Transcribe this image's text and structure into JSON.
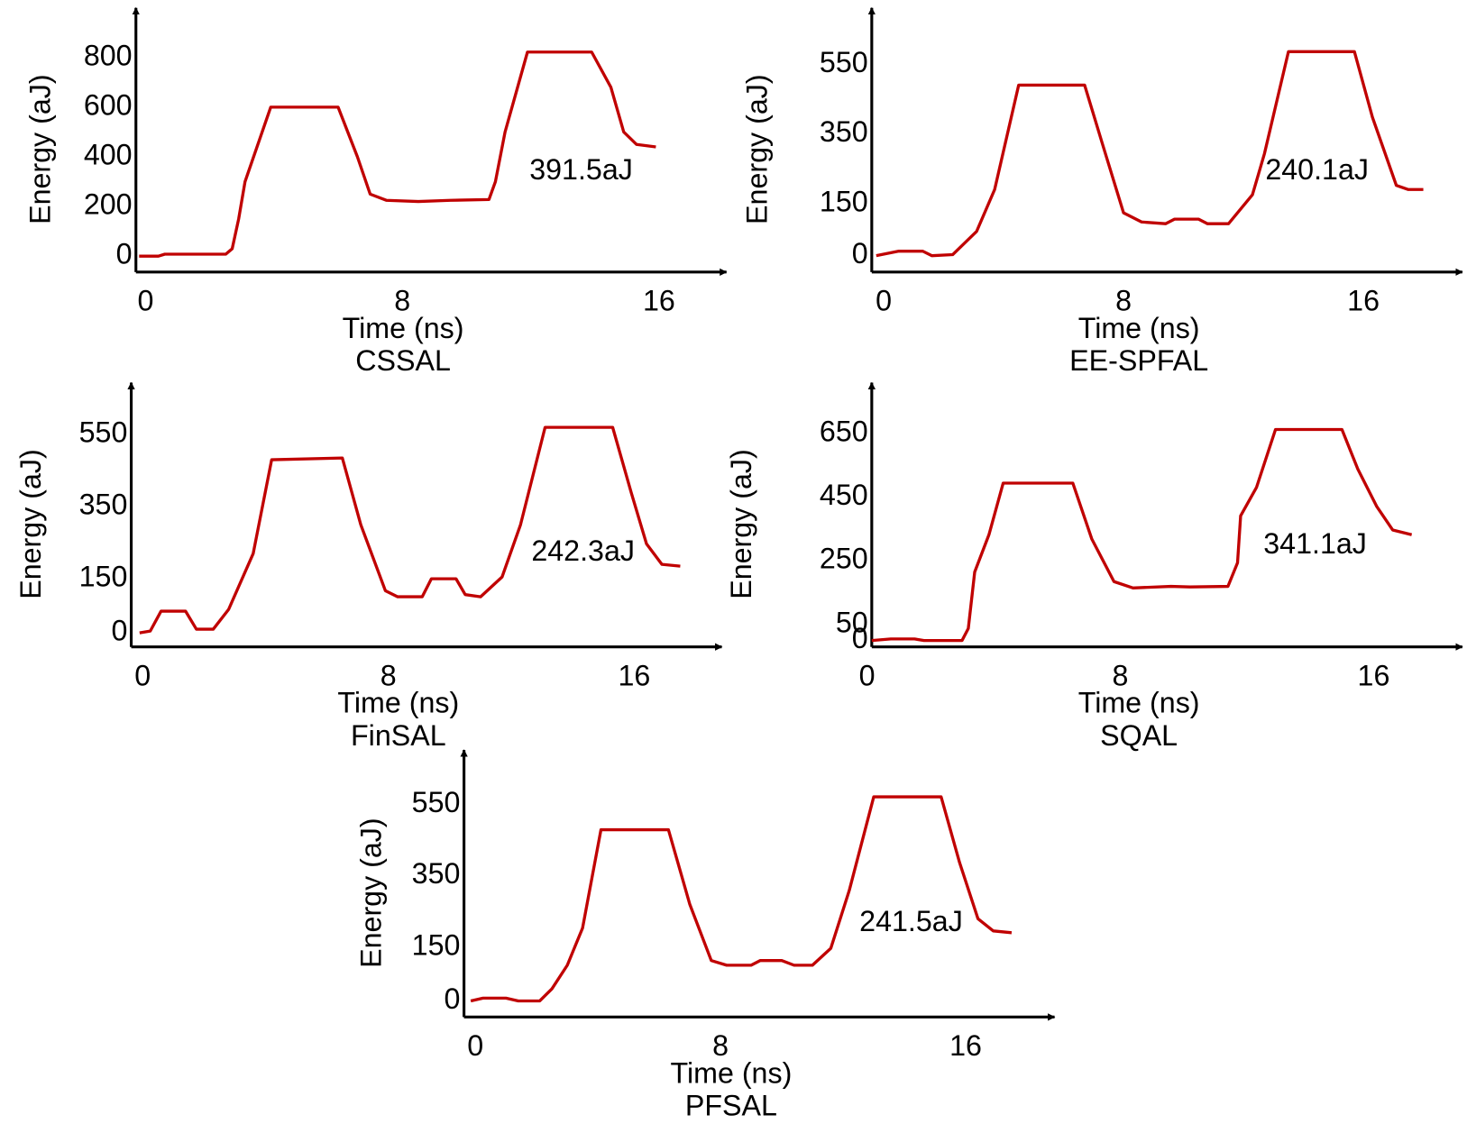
{
  "chart_data": [
    {
      "type": "line",
      "title": "CSSAL",
      "x_label": "Time (ns)",
      "y_label": "Energy (aJ)",
      "annotation": "391.5aJ",
      "color": "#c00000",
      "x": [
        -0.2,
        0.4,
        0.6,
        2.5,
        2.7,
        2.9,
        3.1,
        3.9,
        6.0,
        6.6,
        7.0,
        7.5,
        8.5,
        9.5,
        10.7,
        10.9,
        11.2,
        11.9,
        13.9,
        14.5,
        14.9,
        15.3,
        15.9
      ],
      "values": [
        0,
        0,
        8,
        8,
        30,
        150,
        300,
        600,
        600,
        400,
        250,
        225,
        220,
        225,
        228,
        300,
        500,
        822,
        822,
        680,
        500,
        450,
        440
      ],
      "xlim": [
        -0.3,
        18.1
      ],
      "ylim": [
        -64,
        1000
      ],
      "xticks": [
        0,
        8,
        16
      ],
      "yticks": [
        0,
        200,
        400,
        600,
        800
      ]
    },
    {
      "type": "line",
      "title": "EE-SPFAL",
      "x_label": "Time (ns)",
      "y_label": "Energy (aJ)",
      "annotation": "240.1aJ",
      "color": "#c00000",
      "x": [
        -0.25,
        0.5,
        1.3,
        1.6,
        2.3,
        3.1,
        3.7,
        4.5,
        6.7,
        7.3,
        8.0,
        8.6,
        9.4,
        9.7,
        10.5,
        10.8,
        11.5,
        12.3,
        12.7,
        13.5,
        15.7,
        16.3,
        17.1,
        17.5,
        18.0
      ],
      "values": [
        0,
        13,
        13,
        0,
        3,
        70,
        190,
        490,
        490,
        320,
        123,
        97,
        92,
        105,
        105,
        92,
        92,
        175,
        293,
        586,
        586,
        398,
        202,
        190,
        190
      ],
      "xlim": [
        -0.4,
        19.3
      ],
      "ylim": [
        -47,
        712
      ],
      "xticks": [
        0,
        8,
        16
      ],
      "yticks": [
        0,
        150,
        350,
        550
      ]
    },
    {
      "type": "line",
      "title": "FinSAL",
      "x_label": "Time (ns)",
      "y_label": "Energy (aJ)",
      "annotation": "242.3aJ",
      "color": "#c00000",
      "x": [
        -0.1,
        0.25,
        0.6,
        1.4,
        1.75,
        2.3,
        2.8,
        3.6,
        4.2,
        6.5,
        7.1,
        7.9,
        8.3,
        9.1,
        9.4,
        10.2,
        10.5,
        11.0,
        11.7,
        12.3,
        13.1,
        15.3,
        15.9,
        16.4,
        16.9,
        17.5
      ],
      "values": [
        0,
        5,
        60,
        60,
        10,
        10,
        65,
        220,
        480,
        485,
        300,
        117,
        100,
        100,
        150,
        150,
        106,
        100,
        155,
        300,
        570,
        570,
        390,
        247,
        190,
        185
      ],
      "xlim": [
        -0.37,
        18.85
      ],
      "ylim": [
        -39,
        694
      ],
      "xticks": [
        0,
        8,
        16
      ],
      "yticks": [
        0,
        150,
        350,
        550
      ]
    },
    {
      "type": "line",
      "title": "SQAL",
      "x_label": "Time (ns)",
      "y_label": "Energy (aJ)",
      "annotation": "341.1aJ",
      "color": "#c00000",
      "x": [
        0.15,
        0.75,
        1.5,
        1.8,
        3.0,
        3.2,
        3.4,
        3.85,
        4.3,
        6.5,
        7.1,
        7.8,
        8.4,
        9.6,
        10.2,
        11.4,
        11.7,
        11.8,
        12.3,
        12.9,
        15.0,
        15.5,
        16.1,
        16.6,
        17.2
      ],
      "values": [
        0,
        5,
        5,
        0,
        0,
        38,
        215,
        332,
        494,
        494,
        318,
        185,
        165,
        170,
        168,
        170,
        244,
        391,
        480,
        662,
        662,
        538,
        420,
        347,
        332
      ],
      "xlim": [
        0.15,
        18.8
      ],
      "ylim": [
        -20,
        809
      ],
      "xticks": [
        0,
        8,
        16
      ],
      "yticks": [
        0,
        50,
        250,
        450,
        650
      ]
    },
    {
      "type": "line",
      "title": "PFSAL",
      "x_label": "Time (ns)",
      "y_label": "Energy (aJ)",
      "annotation": "241.5aJ",
      "color": "#c00000",
      "x": [
        -0.15,
        0.25,
        1.0,
        1.4,
        2.1,
        2.5,
        3.0,
        3.5,
        4.1,
        6.3,
        7.0,
        7.7,
        8.2,
        9.0,
        9.3,
        10.0,
        10.4,
        11.0,
        11.6,
        12.2,
        13.0,
        15.2,
        15.8,
        16.4,
        16.9,
        17.5
      ],
      "values": [
        0,
        8,
        8,
        0,
        0,
        34,
        100,
        204,
        479,
        479,
        270,
        113,
        100,
        100,
        113,
        113,
        100,
        100,
        147,
        309,
        571,
        571,
        387,
        230,
        196,
        191
      ],
      "xlim": [
        -0.37,
        18.9
      ],
      "ylim": [
        -45,
        702
      ],
      "xticks": [
        0,
        8,
        16
      ],
      "yticks": [
        0,
        150,
        350,
        550
      ]
    }
  ]
}
